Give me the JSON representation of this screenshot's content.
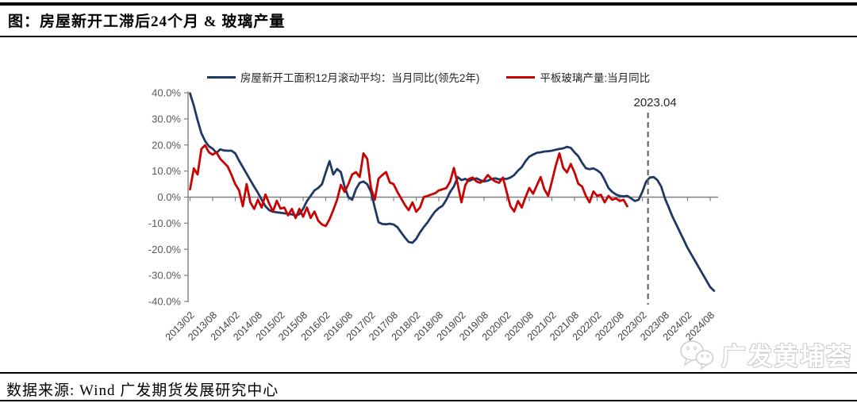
{
  "header": {
    "title": "图：房屋新开工滞后24个月 & 玻璃产量"
  },
  "footer": {
    "source": "数据来源: Wind 广发期货发展研究中心",
    "watermark": "广发黄埔荟"
  },
  "chart_data": {
    "type": "line",
    "title": "房屋新开工滞后24个月 & 玻璃产量",
    "x_start_month": "2013/02",
    "x_step_months": 1,
    "x_tick_labels": [
      "2013/02",
      "2013/08",
      "2014/02",
      "2014/08",
      "2015/02",
      "2015/08",
      "2016/02",
      "2016/08",
      "2017/02",
      "2017/08",
      "2018/02",
      "2018/08",
      "2019/02",
      "2019/08",
      "2020/02",
      "2020/08",
      "2021/02",
      "2021/08",
      "2022/02",
      "2022/08",
      "2023/02",
      "2023/08",
      "2024/02",
      "2024/08"
    ],
    "y_ticks": [
      "40.0%",
      "30.0%",
      "20.0%",
      "10.0%",
      "0.0%",
      "-10.0%",
      "-20.0%",
      "-30.0%",
      "-40.0%"
    ],
    "ylim": [
      -40,
      40
    ],
    "y_unit": "percent YoY",
    "grid": "none (zero axis line only)",
    "legend_position": "top-center",
    "annotation": {
      "label": "2023.04",
      "month_index": 121.5,
      "style": "dashed-vertical-line"
    },
    "series": [
      {
        "name": "房屋新开工面积12月滚动平均：当月同比(领先2年)",
        "color": "#1F3864",
        "values": [
          39.8,
          35,
          29.5,
          24.5,
          21.5,
          19.5,
          18.6,
          17,
          18.3,
          17.9,
          17.8,
          17.8,
          16.8,
          14,
          11.5,
          9,
          6.5,
          4,
          1.7,
          -1,
          -3.5,
          -5,
          -5.6,
          -5.8,
          -6,
          -6.2,
          -6.4,
          -6.6,
          -7.1,
          -6.5,
          -4.5,
          -1.5,
          0.5,
          2.6,
          3.5,
          5,
          9.5,
          13.8,
          8.7,
          10.8,
          9.6,
          4,
          0,
          -1,
          3,
          5.5,
          6,
          5,
          2,
          -4,
          -9.6,
          -10.3,
          -10.4,
          -10.2,
          -10.5,
          -11.5,
          -13.5,
          -15.5,
          -17.2,
          -17.5,
          -16,
          -13.5,
          -11.5,
          -9.7,
          -7.5,
          -5.5,
          -4.2,
          -3.3,
          -1,
          2,
          4.1,
          7.7,
          6.5,
          7,
          6.2,
          6.8,
          7.2,
          6.5,
          6,
          6.3,
          7,
          7.2,
          6.8,
          7,
          7,
          7.5,
          8.5,
          10.2,
          11.5,
          13.8,
          15.5,
          16.3,
          17,
          17.2,
          17.5,
          17.6,
          17.8,
          18.2,
          18.5,
          18.7,
          19.3,
          18.9,
          17.2,
          15.7,
          13.2,
          11.1,
          10.7,
          11,
          10.3,
          9.2,
          6.6,
          3.5,
          2,
          1,
          0.5,
          0.3,
          0.5,
          -0.5,
          -1.5,
          -1,
          2,
          6,
          7.5,
          7.7,
          6.5,
          4,
          -0.5,
          -4,
          -7.5,
          -10.5,
          -13.5,
          -16.5,
          -19.5,
          -22,
          -24.5,
          -27,
          -29.5,
          -32,
          -34.5,
          -35.9
        ]
      },
      {
        "name": "平板玻璃产量:当月同比",
        "color": "#C90202",
        "values": [
          3,
          11,
          8.7,
          18.5,
          19.9,
          17.2,
          16.3,
          17.2,
          14.7,
          13.2,
          11.7,
          8.5,
          5,
          2.6,
          -3.5,
          5,
          -2,
          -4.5,
          -1,
          -4,
          1,
          -2.5,
          -5.5,
          -1.4,
          -4.4,
          -4,
          -7,
          -4.5,
          -8,
          -4.5,
          -7.5,
          -4,
          -8,
          -5.5,
          -9,
          -10.5,
          -11.1,
          -8.5,
          -5,
          -1,
          4.7,
          2,
          5,
          8.7,
          9.6,
          7.7,
          16.8,
          14.7,
          3.5,
          -1,
          7.1,
          8.5,
          9.6,
          5.6,
          5,
          2,
          -0.5,
          -3,
          -5,
          -2,
          -5.6,
          -4,
          0,
          0.5,
          1,
          1.5,
          2.6,
          3,
          3.5,
          6,
          11.2,
          5,
          -2,
          4.5,
          7,
          7.5,
          6,
          5.5,
          6.5,
          8.5,
          7,
          6,
          5.5,
          7.5,
          2,
          -3.5,
          -5.5,
          -1.5,
          -4,
          0,
          3.5,
          1.3,
          4.5,
          7.7,
          3,
          0.5,
          6,
          12,
          16.8,
          11.2,
          9.5,
          12.7,
          9.5,
          5.1,
          4.1,
          0.5,
          -2,
          2.2,
          0.5,
          0.9,
          -2,
          0.5,
          -1,
          -0.5,
          -1.5,
          -1,
          -3.5
        ]
      }
    ]
  }
}
